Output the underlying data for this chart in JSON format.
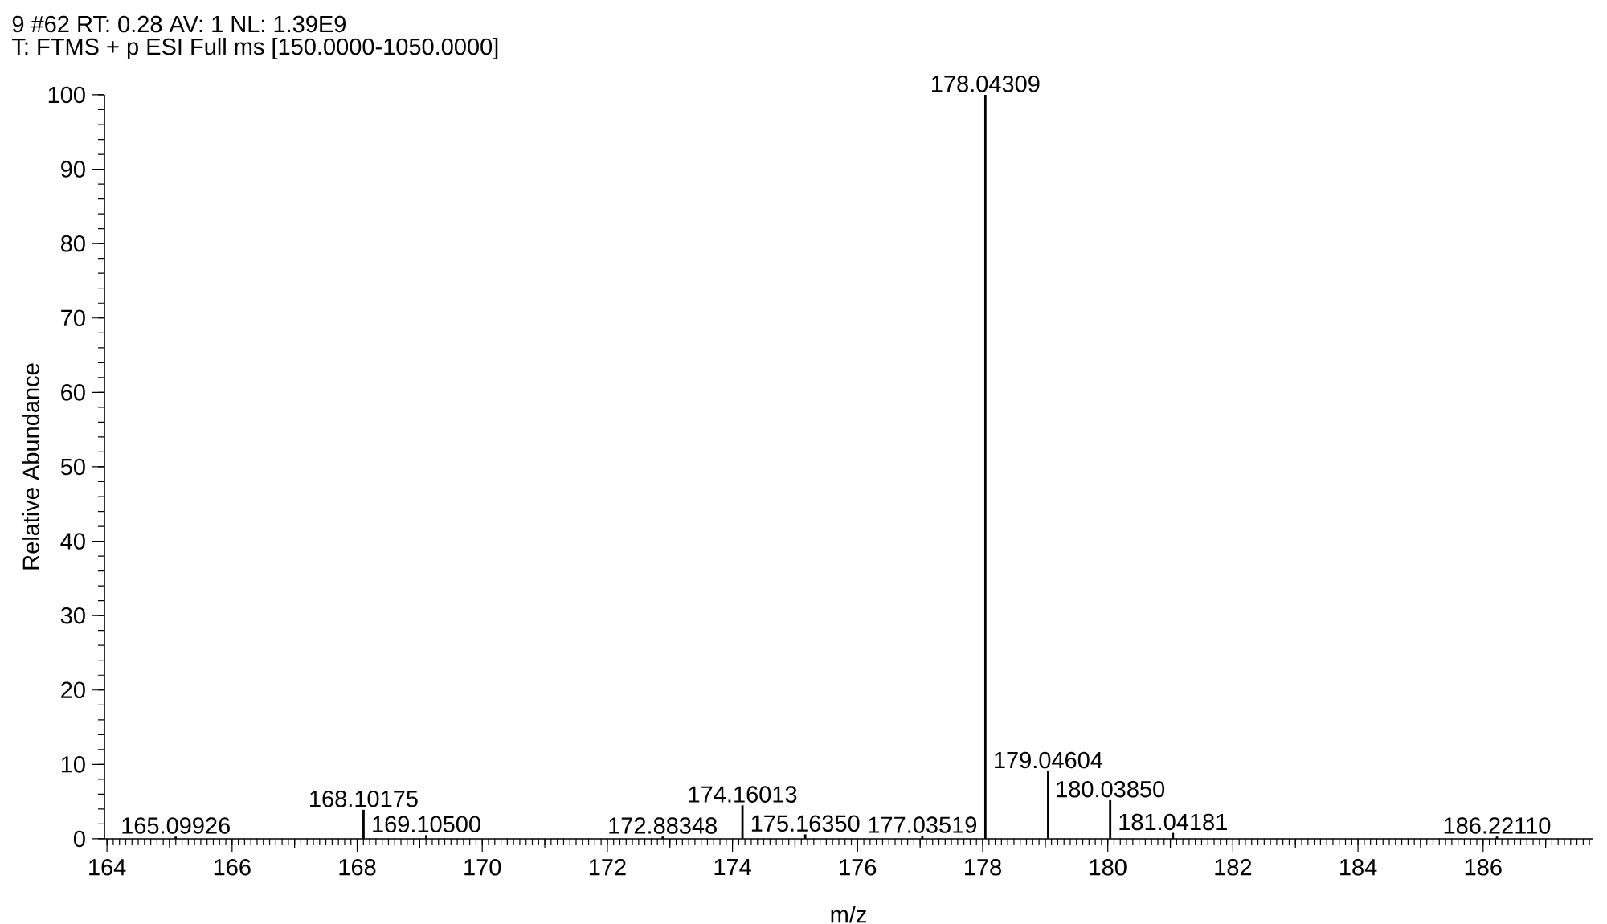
{
  "chart_data": {
    "type": "bar",
    "title": "9 #62  RT: 0.28  AV: 1  NL: 1.39E9",
    "subtitle": "T: FTMS + p ESI Full ms [150.0000-1050.0000]",
    "xlabel": "m/z",
    "ylabel": "Relative Abundance",
    "x": [
      165.09926,
      168.10175,
      169.105,
      172.88348,
      174.16013,
      175.1635,
      177.03519,
      178.04309,
      179.04604,
      180.0385,
      181.04181,
      186.2211
    ],
    "values": [
      0.3,
      3.9,
      0.5,
      0.3,
      4.5,
      0.6,
      0.4,
      100,
      9.1,
      5.2,
      0.8,
      0.3
    ],
    "color": "#000000",
    "xlim": [
      163.96,
      187.75
    ],
    "ylim": [
      0,
      100
    ],
    "xticks": [
      164,
      {
        "value": 165,
        "label": null
      },
      166,
      {
        "value": 167,
        "label": null
      },
      168,
      {
        "value": 169,
        "label": null
      },
      170,
      {
        "value": 171,
        "label": null
      },
      172,
      {
        "value": 173,
        "label": null
      },
      174,
      {
        "value": 175,
        "label": null
      },
      176,
      {
        "value": 177,
        "label": null
      },
      178,
      {
        "value": 179,
        "label": null
      },
      180,
      {
        "value": 181,
        "label": null
      },
      182,
      {
        "value": 183,
        "label": null
      },
      184,
      {
        "value": 185,
        "label": null
      },
      186,
      {
        "value": 187,
        "label": null
      }
    ],
    "yticks": [
      0,
      10,
      20,
      30,
      40,
      50,
      60,
      70,
      80,
      90,
      100
    ],
    "annotations": [
      {
        "text": "165.09926",
        "x": 165.09926,
        "y": 0.3
      },
      {
        "text": "168.10175",
        "x": 168.10175,
        "y": 3.9
      },
      {
        "text": "169.10500",
        "x": 169.105,
        "y": 0.5
      },
      {
        "text": "172.88348",
        "x": 172.88348,
        "y": 0.3
      },
      {
        "text": "174.16013",
        "x": 174.16013,
        "y": 4.5
      },
      {
        "text": "175.16350",
        "x": 175.1635,
        "y": 0.6
      },
      {
        "text": "177.03519",
        "x": 177.03519,
        "y": 0.4
      },
      {
        "text": "178.04309",
        "x": 178.04309,
        "y": 100
      },
      {
        "text": "179.04604",
        "x": 179.04604,
        "y": 9.1
      },
      {
        "text": "180.03850",
        "x": 180.0385,
        "y": 5.2
      },
      {
        "text": "181.04181",
        "x": 181.04181,
        "y": 0.8
      },
      {
        "text": "186.22110",
        "x": 186.2211,
        "y": 0.3
      }
    ]
  }
}
